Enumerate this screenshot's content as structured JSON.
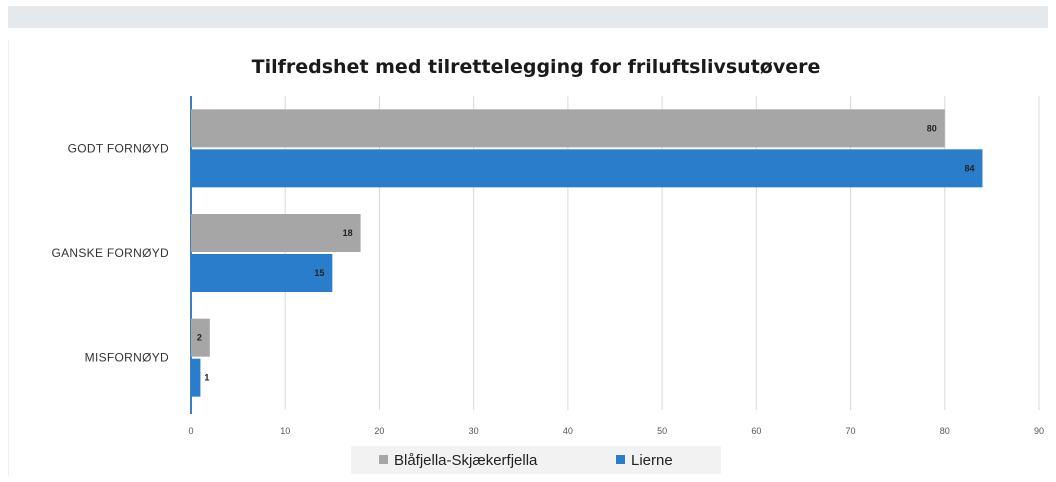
{
  "chart_data": {
    "type": "bar",
    "orientation": "horizontal",
    "title": "Tilfredshet med tilrettelegging for friluftslivsutøvere",
    "categories": [
      "GODT FORNØYD",
      "GANSKE  FORNØYD",
      "MISFORNØYD"
    ],
    "series": [
      {
        "name": "Blåfjella-Skjækerfjella",
        "values": [
          80,
          18,
          2
        ],
        "color": "#a6a6a6"
      },
      {
        "name": "Lierne",
        "values": [
          84,
          15,
          1
        ],
        "color": "#2a7dcb"
      }
    ],
    "xlim": [
      0,
      90
    ],
    "xticks": [
      0,
      10,
      20,
      30,
      40,
      50,
      60,
      70,
      80,
      90
    ],
    "grid": true,
    "data_labels": true,
    "legend": "bottom"
  },
  "colors": {
    "topbar": "#e6e9ec",
    "gridline": "#d9d9d9",
    "axis": "#3f7fc0"
  }
}
